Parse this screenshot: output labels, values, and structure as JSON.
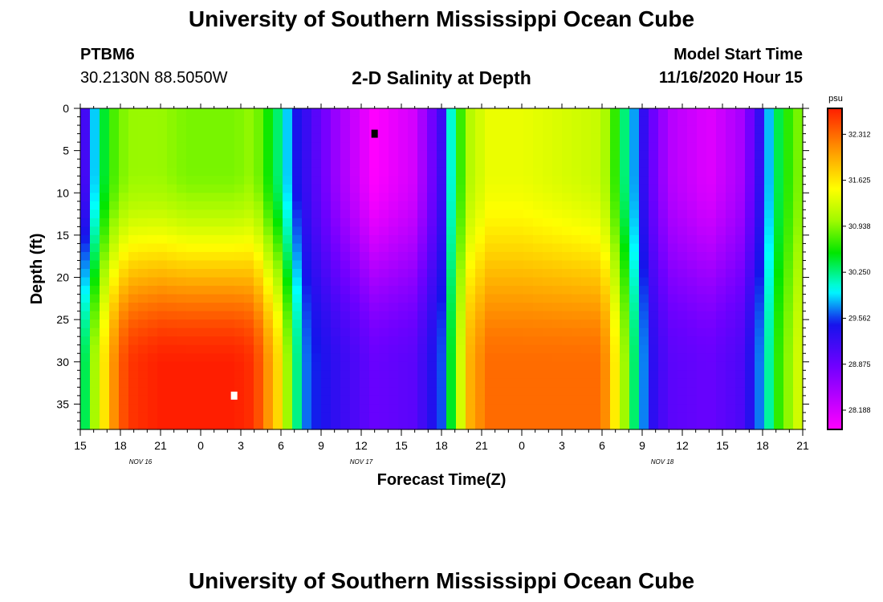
{
  "header": {
    "title": "University of Southern Mississippi Ocean Cube",
    "station_id": "PTBM6",
    "station_coords": "30.2130N 88.5050W",
    "plot_title": "2-D Salinity at Depth",
    "model_start_label": "Model Start Time",
    "model_start_value": "11/16/2020 Hour 15"
  },
  "footer": {
    "title": "University of Southern Mississippi Ocean Cube"
  },
  "chart_data": {
    "type": "heatmap",
    "title": "2-D Salinity at Depth",
    "xlabel": "Forecast Time(Z)",
    "ylabel": "Depth (ft)",
    "x_range_hours": [
      0,
      54
    ],
    "ylim": [
      0,
      38
    ],
    "y_inverted": true,
    "x_ticks": [
      "15",
      "18",
      "21",
      "0",
      "3",
      "6",
      "9",
      "12",
      "15",
      "18",
      "21",
      "0",
      "3",
      "6",
      "9",
      "12",
      "15",
      "18",
      "21"
    ],
    "x_date_labels": [
      {
        "label": "NOV 16",
        "hour": 4.5
      },
      {
        "label": "NOV 17",
        "hour": 21
      },
      {
        "label": "NOV 18",
        "hour": 43.5
      }
    ],
    "y_ticks": [
      0,
      5,
      10,
      15,
      20,
      25,
      30,
      35
    ],
    "colorbar": {
      "unit": "psu",
      "range": [
        27.9,
        32.7
      ],
      "tick_values": [
        "32.312",
        "31.625",
        "30.938",
        "30.250",
        "29.562",
        "28.875",
        "28.188"
      ]
    },
    "markers": [
      {
        "name": "min",
        "hour": 22,
        "depth": 3,
        "color": "#000000"
      },
      {
        "name": "max",
        "hour": 11.5,
        "depth": 34,
        "color": "#ffffff"
      }
    ],
    "salinity_profiles": [
      {
        "hour": 0.0,
        "surface": 28.8,
        "bottom": 30.0
      },
      {
        "hour": 1.0,
        "surface": 29.8,
        "bottom": 31.0
      },
      {
        "hour": 2.0,
        "surface": 30.6,
        "bottom": 31.8
      },
      {
        "hour": 3.0,
        "surface": 30.9,
        "bottom": 32.4
      },
      {
        "hour": 4.0,
        "surface": 31.0,
        "bottom": 32.6
      },
      {
        "hour": 6.0,
        "surface": 31.0,
        "bottom": 32.7
      },
      {
        "hour": 8.0,
        "surface": 30.9,
        "bottom": 32.7
      },
      {
        "hour": 10.0,
        "surface": 30.9,
        "bottom": 32.7
      },
      {
        "hour": 11.5,
        "surface": 30.9,
        "bottom": 32.7
      },
      {
        "hour": 13.0,
        "surface": 31.0,
        "bottom": 32.6
      },
      {
        "hour": 15.0,
        "surface": 30.2,
        "bottom": 31.6
      },
      {
        "hour": 16.0,
        "surface": 29.5,
        "bottom": 30.4
      },
      {
        "hour": 17.0,
        "surface": 29.2,
        "bottom": 29.6
      },
      {
        "hour": 19.0,
        "surface": 28.6,
        "bottom": 29.3
      },
      {
        "hour": 22.0,
        "surface": 27.9,
        "bottom": 28.9
      },
      {
        "hour": 25.0,
        "surface": 28.2,
        "bottom": 29.0
      },
      {
        "hour": 27.0,
        "surface": 29.2,
        "bottom": 29.6
      },
      {
        "hour": 28.0,
        "surface": 30.4,
        "bottom": 30.8
      },
      {
        "hour": 29.0,
        "surface": 31.1,
        "bottom": 31.9
      },
      {
        "hour": 30.5,
        "surface": 31.4,
        "bottom": 32.3
      },
      {
        "hour": 33.0,
        "surface": 31.4,
        "bottom": 32.3
      },
      {
        "hour": 36.0,
        "surface": 31.3,
        "bottom": 32.3
      },
      {
        "hour": 39.0,
        "surface": 31.2,
        "bottom": 32.3
      },
      {
        "hour": 40.5,
        "surface": 30.4,
        "bottom": 31.2
      },
      {
        "hour": 41.5,
        "surface": 29.7,
        "bottom": 30.2
      },
      {
        "hour": 42.5,
        "surface": 29.0,
        "bottom": 29.4
      },
      {
        "hour": 44.0,
        "surface": 28.4,
        "bottom": 29.0
      },
      {
        "hour": 47.0,
        "surface": 28.1,
        "bottom": 28.9
      },
      {
        "hour": 49.5,
        "surface": 28.5,
        "bottom": 29.1
      },
      {
        "hour": 51.0,
        "surface": 29.4,
        "bottom": 29.8
      },
      {
        "hour": 52.0,
        "surface": 30.3,
        "bottom": 30.6
      },
      {
        "hour": 53.0,
        "surface": 30.7,
        "bottom": 31.0
      },
      {
        "hour": 54.0,
        "surface": 31.0,
        "bottom": 31.4
      }
    ]
  }
}
